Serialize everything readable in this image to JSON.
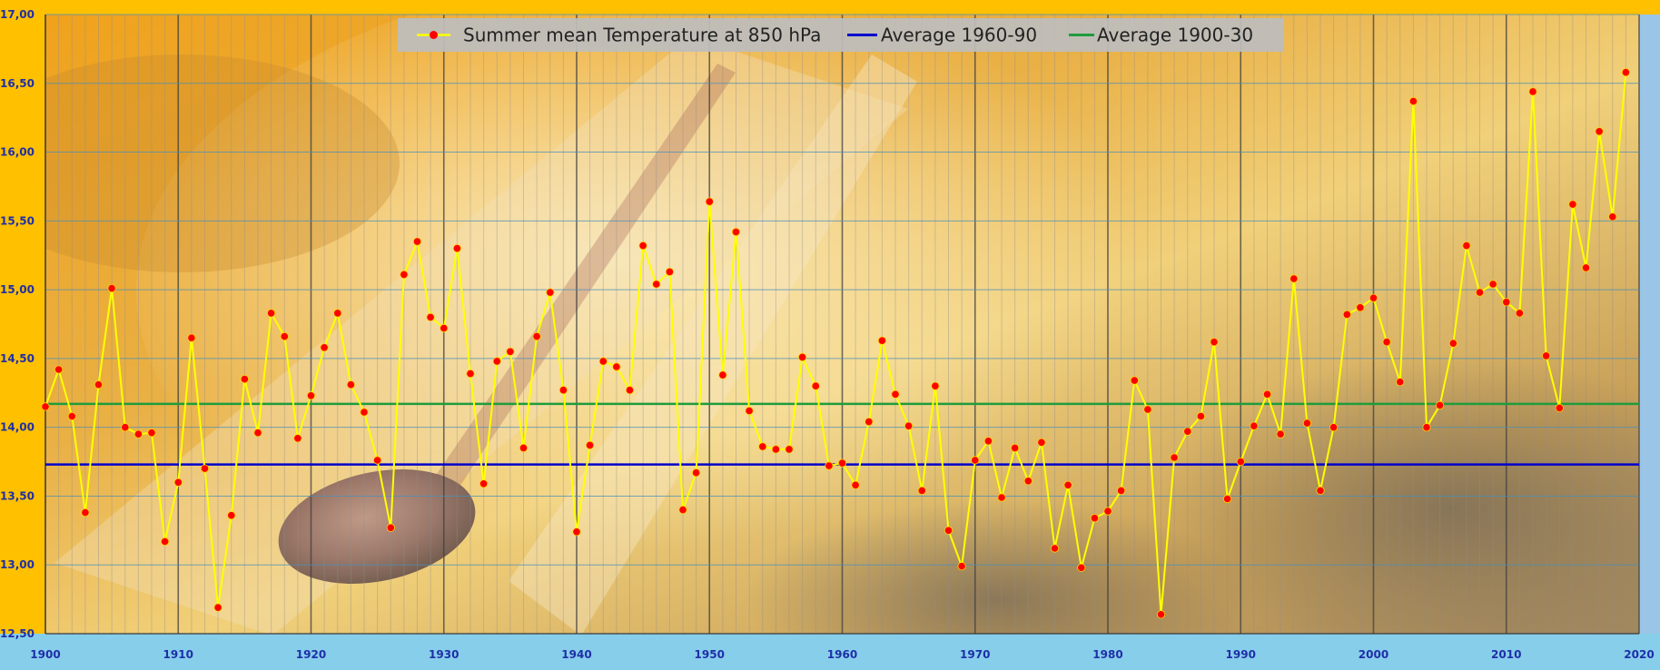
{
  "chart_data": {
    "type": "line",
    "title": "",
    "xlabel": "",
    "ylabel": "",
    "xlim": [
      1900,
      2020
    ],
    "ylim": [
      12.5,
      17.0
    ],
    "x_ticks": [
      1900,
      1910,
      1920,
      1930,
      1940,
      1950,
      1960,
      1970,
      1980,
      1990,
      2000,
      2010,
      2020
    ],
    "y_ticks": [
      12.5,
      13.0,
      13.5,
      14.0,
      14.5,
      15.0,
      15.5,
      16.0,
      16.5,
      17.0
    ],
    "y_tick_labels": [
      "12,50",
      "13,00",
      "13,50",
      "14,00",
      "14,50",
      "15,00",
      "15,50",
      "16,00",
      "16,50",
      "17,00"
    ],
    "x_tick_labels": [
      "1900",
      "1910",
      "1920",
      "1930",
      "1940",
      "1950",
      "1960",
      "1970",
      "1980",
      "1990",
      "2000",
      "2010",
      "2020"
    ],
    "grid": true,
    "legend_position": "top",
    "series": [
      {
        "name": "Summer mean Temperature at 850 hPa",
        "kind": "line-markers",
        "line_color": "#ffff00",
        "marker_color": "#ff0000",
        "x_start": 1900,
        "values": [
          14.15,
          14.42,
          14.08,
          13.38,
          14.31,
          15.01,
          14.0,
          13.95,
          13.96,
          13.17,
          13.6,
          14.65,
          13.7,
          12.69,
          13.36,
          14.35,
          13.96,
          14.83,
          14.66,
          13.92,
          14.23,
          14.58,
          14.83,
          14.31,
          14.11,
          13.76,
          13.27,
          15.11,
          15.35,
          14.8,
          14.72,
          15.3,
          14.39,
          13.59,
          14.48,
          14.55,
          13.85,
          14.66,
          14.98,
          14.27,
          13.24,
          13.87,
          14.48,
          14.44,
          14.27,
          15.32,
          15.04,
          15.13,
          13.4,
          13.67,
          15.64,
          14.38,
          15.42,
          14.12,
          13.86,
          13.84,
          13.84,
          14.51,
          14.3,
          13.72,
          13.74,
          13.58,
          14.04,
          14.63,
          14.24,
          14.01,
          13.54,
          14.3,
          13.25,
          12.99,
          13.76,
          13.9,
          13.49,
          13.85,
          13.61,
          13.89,
          13.12,
          13.58,
          12.98,
          13.34,
          13.39,
          13.54,
          14.34,
          14.13,
          12.64,
          13.78,
          13.97,
          14.08,
          14.62,
          13.48,
          13.75,
          14.01,
          14.24,
          13.95,
          15.08,
          14.03,
          13.54,
          14.0,
          14.82,
          14.87,
          14.94,
          14.62,
          14.33,
          16.37,
          14.0,
          14.16,
          14.61,
          15.32,
          14.98,
          15.04,
          14.91,
          14.83,
          16.44,
          14.52,
          14.14,
          15.62,
          15.16,
          16.15,
          15.53,
          16.58
        ]
      },
      {
        "name": "Average 1960-90",
        "kind": "hline",
        "color": "#0000cc",
        "value": 13.73
      },
      {
        "name": "Average 1900-30",
        "kind": "hline",
        "color": "#1f9c3c",
        "value": 14.17
      }
    ]
  }
}
